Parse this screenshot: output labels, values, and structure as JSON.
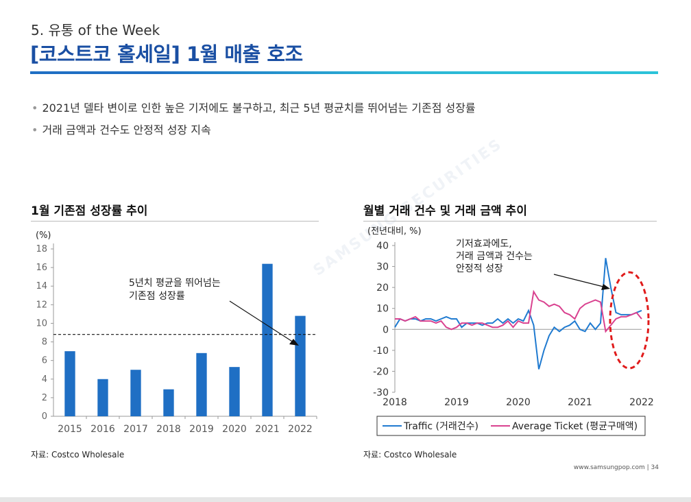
{
  "header": {
    "section_label": "5. 유통 of the Week",
    "title": "[코스트코 홀세일] 1월 매출 호조"
  },
  "bullets": [
    "2021년 델타 변이로 인한 높은 기저에도 불구하고, 최근 5년 평균치를 뛰어넘는 기존점 성장률",
    "거래 금액과 건수도 안정적 성장 지속"
  ],
  "watermark": "SAMSUNG SECURITIES",
  "left_panel": {
    "title": "1월 기존점 성장률 추이",
    "source": "자료: Costco Wholesale"
  },
  "right_panel": {
    "title": "월별 거래 건수 및 거래 금액 추이",
    "source": "자료: Costco Wholesale"
  },
  "footer": {
    "url": "www.samsungpop.com",
    "page": "34"
  },
  "colors": {
    "accent": "#1a4fa3",
    "bar": "#1f6fc4",
    "traffic": "#1f7ad0",
    "ticket": "#d9418f",
    "ellipse": "#e01b1b"
  },
  "chart_data": [
    {
      "type": "bar",
      "unit_label": "(%)",
      "categories": [
        "2015",
        "2016",
        "2017",
        "2018",
        "2019",
        "2020",
        "2021",
        "2022"
      ],
      "values": [
        7.0,
        4.0,
        5.0,
        2.9,
        6.8,
        5.3,
        16.4,
        10.8
      ],
      "ylim": [
        0,
        18
      ],
      "yticks": [
        0,
        2,
        4,
        6,
        8,
        10,
        12,
        14,
        16,
        18
      ],
      "reference_line": 8.8,
      "annotation": [
        "5년치 평균을 뛰어넘는",
        "기존점 성장률"
      ]
    },
    {
      "type": "line",
      "unit_label": "(전년대비, %)",
      "x_ticks": [
        "2018",
        "2019",
        "2020",
        "2021",
        "2022"
      ],
      "ylim": [
        -30,
        40
      ],
      "yticks": [
        -30,
        -20,
        -10,
        0,
        10,
        20,
        30,
        40
      ],
      "annotation": [
        "기저효과에도,",
        "거래 금액과 건수는",
        "안정적 성장"
      ],
      "series": [
        {
          "name": "Traffic (거래건수)",
          "x": [
            "2018-01",
            "2018-02",
            "2018-03",
            "2018-04",
            "2018-05",
            "2018-06",
            "2018-07",
            "2018-08",
            "2018-09",
            "2018-10",
            "2018-11",
            "2018-12",
            "2019-01",
            "2019-02",
            "2019-03",
            "2019-04",
            "2019-05",
            "2019-06",
            "2019-07",
            "2019-08",
            "2019-09",
            "2019-10",
            "2019-11",
            "2019-12",
            "2020-01",
            "2020-02",
            "2020-03",
            "2020-04",
            "2020-05",
            "2020-06",
            "2020-07",
            "2020-08",
            "2020-09",
            "2020-10",
            "2020-11",
            "2020-12",
            "2021-01",
            "2021-02",
            "2021-03",
            "2021-04",
            "2021-05",
            "2021-06",
            "2021-07",
            "2021-08",
            "2021-09",
            "2021-10",
            "2021-11",
            "2021-12",
            "2022-01"
          ],
          "values": [
            1,
            5,
            4,
            5,
            5,
            4,
            5,
            5,
            4,
            5,
            6,
            5,
            5,
            1,
            3,
            3,
            3,
            2,
            3,
            3,
            5,
            3,
            5,
            3,
            5,
            4,
            9,
            2,
            -19,
            -10,
            -3,
            1,
            -1,
            1,
            2,
            4,
            0,
            -1,
            3,
            0,
            3,
            34,
            20,
            8,
            7,
            7,
            7,
            8,
            9
          ]
        },
        {
          "name": "Average Ticket (평균구매액)",
          "x": [
            "2018-01",
            "2018-02",
            "2018-03",
            "2018-04",
            "2018-05",
            "2018-06",
            "2018-07",
            "2018-08",
            "2018-09",
            "2018-10",
            "2018-11",
            "2018-12",
            "2019-01",
            "2019-02",
            "2019-03",
            "2019-04",
            "2019-05",
            "2019-06",
            "2019-07",
            "2019-08",
            "2019-09",
            "2019-10",
            "2019-11",
            "2019-12",
            "2020-01",
            "2020-02",
            "2020-03",
            "2020-04",
            "2020-05",
            "2020-06",
            "2020-07",
            "2020-08",
            "2020-09",
            "2020-10",
            "2020-11",
            "2020-12",
            "2021-01",
            "2021-02",
            "2021-03",
            "2021-04",
            "2021-05",
            "2021-06",
            "2021-07",
            "2021-08",
            "2021-09",
            "2021-10",
            "2021-11",
            "2021-12",
            "2022-01"
          ],
          "values": [
            5,
            5,
            4,
            5,
            6,
            4,
            4,
            4,
            3,
            4,
            1,
            0,
            1,
            3,
            3,
            2,
            3,
            3,
            2,
            1,
            1,
            2,
            4,
            1,
            4,
            3,
            3,
            18,
            14,
            13,
            11,
            12,
            11,
            8,
            7,
            5,
            10,
            12,
            13,
            14,
            13,
            -1,
            2,
            5,
            6,
            6,
            7,
            8,
            5
          ]
        }
      ]
    }
  ]
}
